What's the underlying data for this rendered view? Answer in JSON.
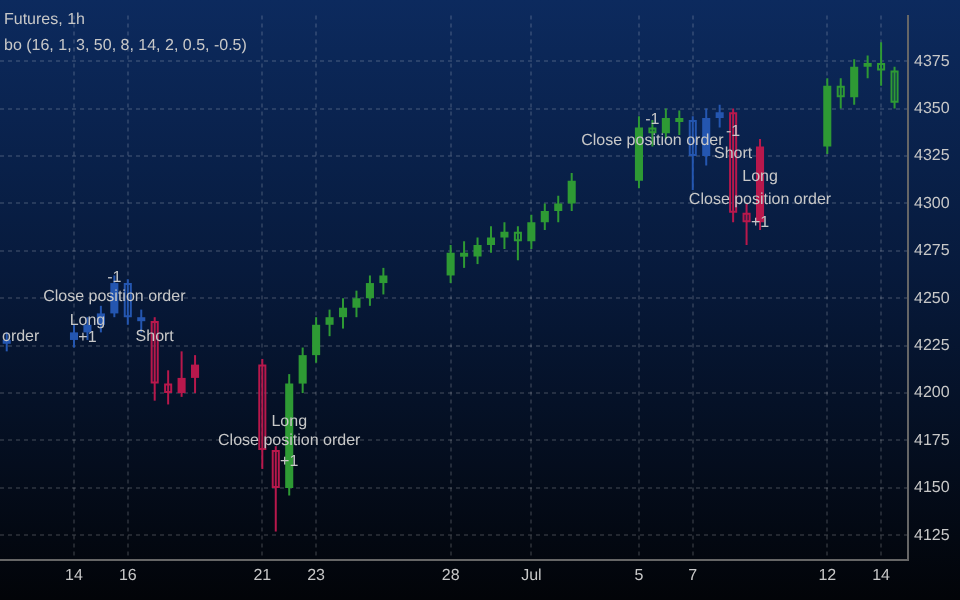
{
  "chart_data": {
    "type": "candlestick",
    "title": "Futures, 1h",
    "subtitle": "bo (16, 1, 3, 50, 8, 14, 2, 0.5, -0.5)",
    "xlim": [
      "--06-11T06:00",
      "--07-15T00:00"
    ],
    "ylim": [
      4112,
      4399
    ],
    "xticks": [
      {
        "value": "--06-14",
        "label": "14"
      },
      {
        "value": "--06-16",
        "label": "16"
      },
      {
        "value": "--06-21",
        "label": "21"
      },
      {
        "value": "--06-23",
        "label": "23"
      },
      {
        "value": "--06-28",
        "label": "28"
      },
      {
        "value": "--07-01",
        "label": "Jul"
      },
      {
        "value": "--07-05",
        "label": "5"
      },
      {
        "value": "--07-07",
        "label": "7"
      },
      {
        "value": "--07-12",
        "label": "12"
      },
      {
        "value": "--07-14",
        "label": "14"
      }
    ],
    "yticks": [
      4125,
      4150,
      4175,
      4200,
      4225,
      4250,
      4275,
      4300,
      4325,
      4350,
      4375
    ],
    "grid": true,
    "series": [
      {
        "type": "candlestick",
        "color": "#2456b0",
        "x": [
          "--06-11T12:00",
          "--06-14",
          "--06-14T12:00",
          "--06-15",
          "--06-15T12:00",
          "--06-16",
          "--06-16T12:00"
        ],
        "ohlc": [
          [
            4226,
            4232,
            4222,
            4228
          ],
          [
            4228,
            4236,
            4224,
            4232
          ],
          [
            4232,
            4240,
            4228,
            4236
          ],
          [
            4236,
            4246,
            4232,
            4242
          ],
          [
            4242,
            4262,
            4240,
            4258
          ],
          [
            4258,
            4260,
            4236,
            4240
          ],
          [
            4240,
            4244,
            4232,
            4238
          ]
        ]
      },
      {
        "type": "candlestick",
        "color": "#b8184c",
        "x": [
          "--06-17",
          "--06-17T12:00",
          "--06-18",
          "--06-18T12:00",
          "--06-21",
          "--06-21T12:00"
        ],
        "ohlc": [
          [
            4238,
            4240,
            4196,
            4205
          ],
          [
            4205,
            4212,
            4194,
            4200
          ],
          [
            4200,
            4222,
            4198,
            4208
          ],
          [
            4208,
            4220,
            4200,
            4215
          ],
          [
            4215,
            4218,
            4160,
            4170
          ],
          [
            4170,
            4172,
            4127,
            4150
          ]
        ]
      },
      {
        "type": "candlestick",
        "color": "#2e9a34",
        "x": [
          "--06-22",
          "--06-22T12:00",
          "--06-23",
          "--06-23T12:00",
          "--06-24",
          "--06-24T12:00",
          "--06-25",
          "--06-25T12:00",
          "--06-28",
          "--06-28T12:00",
          "--06-29",
          "--06-29T12:00",
          "--06-30",
          "--06-30T12:00",
          "--07-01",
          "--07-01T12:00",
          "--07-02",
          "--07-02T12:00",
          "--07-05",
          "--07-05T12:00",
          "--07-06",
          "--07-06T12:00"
        ],
        "ohlc": [
          [
            4150,
            4210,
            4146,
            4205
          ],
          [
            4205,
            4224,
            4200,
            4220
          ],
          [
            4220,
            4240,
            4216,
            4236
          ],
          [
            4236,
            4244,
            4230,
            4240
          ],
          [
            4240,
            4250,
            4234,
            4245
          ],
          [
            4245,
            4254,
            4240,
            4250
          ],
          [
            4250,
            4262,
            4246,
            4258
          ],
          [
            4258,
            4266,
            4252,
            4262
          ],
          [
            4262,
            4278,
            4258,
            4274
          ],
          [
            4274,
            4280,
            4266,
            4272
          ],
          [
            4272,
            4282,
            4268,
            4278
          ],
          [
            4278,
            4288,
            4274,
            4282
          ],
          [
            4282,
            4290,
            4276,
            4285
          ],
          [
            4285,
            4288,
            4270,
            4280
          ],
          [
            4280,
            4294,
            4276,
            4290
          ],
          [
            4290,
            4300,
            4286,
            4296
          ],
          [
            4296,
            4304,
            4290,
            4300
          ],
          [
            4300,
            4316,
            4296,
            4312
          ],
          [
            4312,
            4346,
            4308,
            4340
          ],
          [
            4340,
            4344,
            4330,
            4337
          ],
          [
            4337,
            4350,
            4334,
            4345
          ],
          [
            4345,
            4349,
            4336,
            4344
          ]
        ]
      },
      {
        "type": "candlestick",
        "color": "#2456b0",
        "x": [
          "--07-07",
          "--07-07T12:00",
          "--07-08"
        ],
        "ohlc": [
          [
            4344,
            4346,
            4307,
            4325
          ],
          [
            4325,
            4350,
            4320,
            4345
          ],
          [
            4345,
            4352,
            4340,
            4348
          ]
        ]
      },
      {
        "type": "candlestick",
        "color": "#b8184c",
        "x": [
          "--07-08T12:00",
          "--07-09",
          "--07-09T12:00"
        ],
        "ohlc": [
          [
            4348,
            4350,
            4290,
            4295
          ],
          [
            4295,
            4300,
            4278,
            4290
          ],
          [
            4290,
            4334,
            4286,
            4330
          ]
        ]
      },
      {
        "type": "candlestick",
        "color": "#2e9a34",
        "x": [
          "--07-12",
          "--07-12T12:00",
          "--07-13",
          "--07-13T12:00",
          "--07-14",
          "--07-14T12:00"
        ],
        "ohlc": [
          [
            4330,
            4366,
            4326,
            4362
          ],
          [
            4362,
            4366,
            4350,
            4356
          ],
          [
            4356,
            4376,
            4352,
            4372
          ],
          [
            4372,
            4378,
            4366,
            4374
          ],
          [
            4374,
            4385,
            4362,
            4370
          ],
          [
            4370,
            4372,
            4350,
            4353
          ]
        ]
      }
    ],
    "annotations": [
      {
        "text": "order",
        "x": "--06-11T12:00",
        "y": 4230
      },
      {
        "text": "-1",
        "x": "--06-15T12:00",
        "y": 4261
      },
      {
        "text": "Close position order",
        "x": "--06-15T12:00",
        "y": 4251
      },
      {
        "text": "Short",
        "x": "--06-17",
        "y": 4230
      },
      {
        "text": "Long",
        "x": "--06-14T12:00",
        "y": 4238
      },
      {
        "text": "+1",
        "x": "--06-14T12:00",
        "y": 4229
      },
      {
        "text": "Long",
        "x": "--06-22",
        "y": 4185
      },
      {
        "text": "Close position order",
        "x": "--06-22",
        "y": 4175
      },
      {
        "text": "+1",
        "x": "--06-22",
        "y": 4164
      },
      {
        "text": "-1",
        "x": "--07-05T12:00",
        "y": 4344
      },
      {
        "text": "Close position order",
        "x": "--07-05T12:00",
        "y": 4333
      },
      {
        "text": "-1",
        "x": "--07-08T12:00",
        "y": 4338
      },
      {
        "text": "Short",
        "x": "--07-08T12:00",
        "y": 4326
      },
      {
        "text": "Long",
        "x": "--07-09T12:00",
        "y": 4314
      },
      {
        "text": "Close position order",
        "x": "--07-09T12:00",
        "y": 4302
      },
      {
        "text": "+1",
        "x": "--07-09T12:00",
        "y": 4290
      }
    ]
  }
}
